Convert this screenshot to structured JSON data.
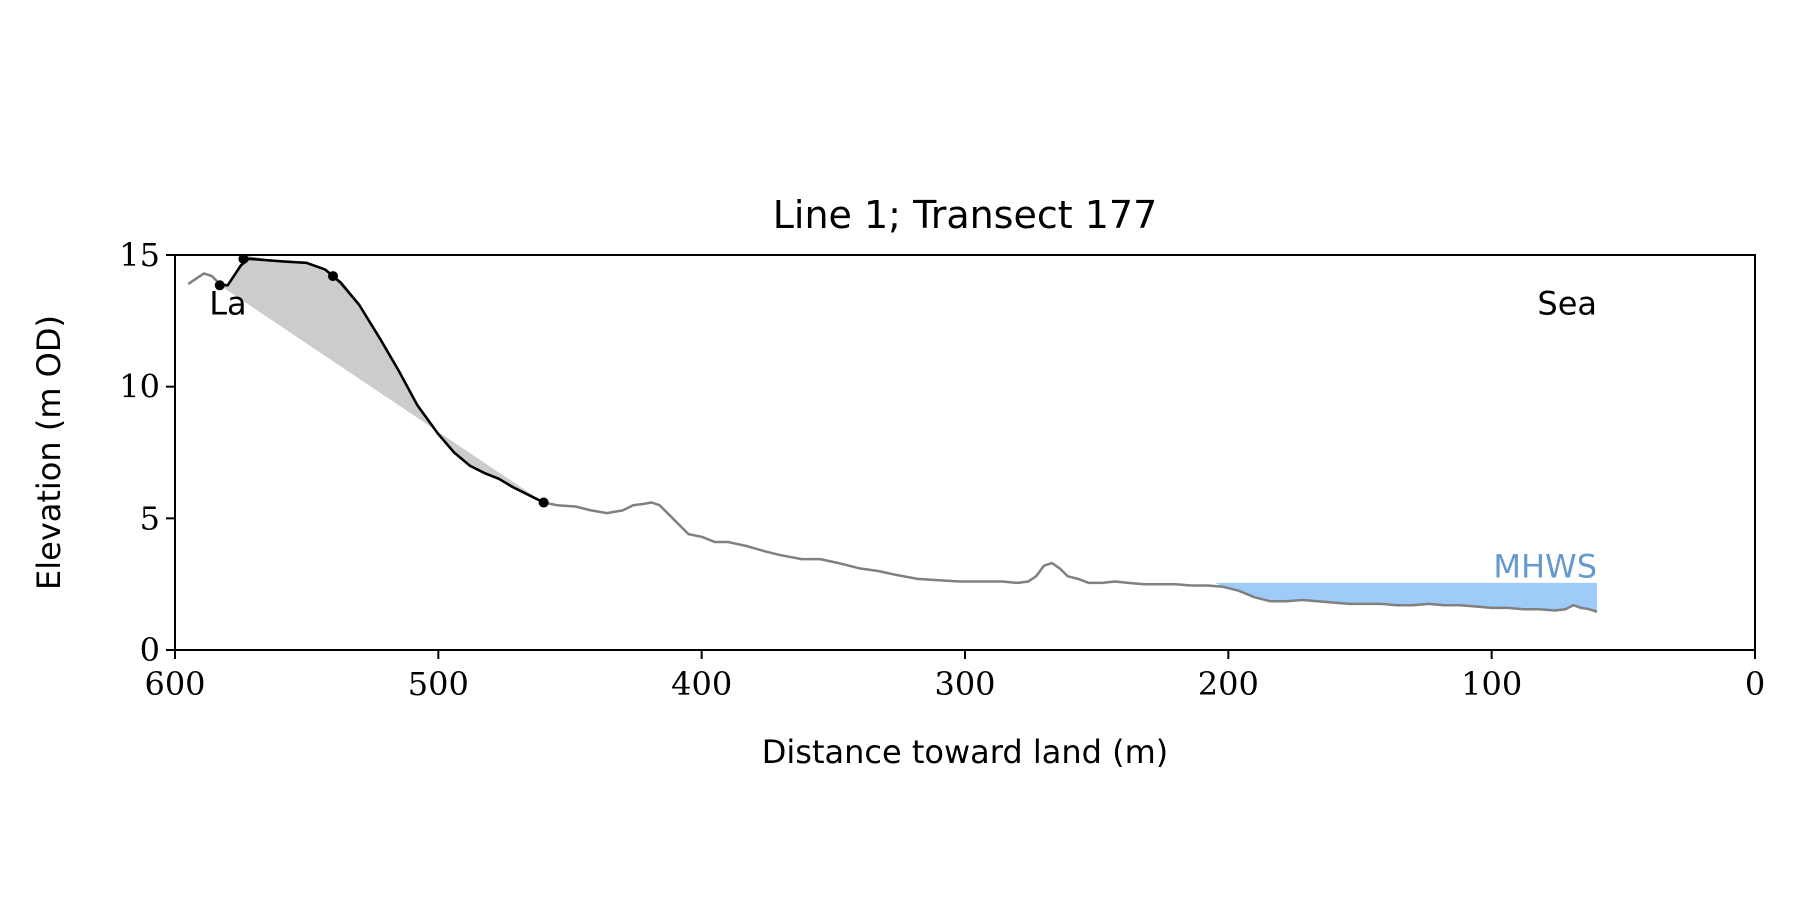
{
  "chart_data": {
    "type": "line",
    "title": "Line 1; Transect 177",
    "xlabel": "Distance toward land (m)",
    "ylabel": "Elevation (m OD)",
    "xlim": [
      600,
      0
    ],
    "ylim": [
      0,
      15
    ],
    "x_ticks": [
      600,
      500,
      400,
      300,
      200,
      100,
      0
    ],
    "y_ticks": [
      0,
      5,
      10,
      15
    ],
    "grid": false,
    "annotations": [
      {
        "text": "La",
        "x": 587,
        "y": 13.2,
        "align": "start"
      },
      {
        "text": "Sea",
        "x": 60,
        "y": 13.2,
        "align": "end"
      },
      {
        "text": "MHWS",
        "x": 60,
        "y": 3.2,
        "align": "end"
      }
    ],
    "colors": {
      "profile": "#808080",
      "cliff": "#000000",
      "fill": "#cccccc",
      "mhws_fill": "#9ecbf7",
      "mhws_text": "#6699cc"
    },
    "mhws": {
      "level": 2.55,
      "x_from": 205,
      "x_to": 60
    },
    "series": [
      {
        "role": "profile",
        "points": [
          [
            595,
            13.9
          ],
          [
            592,
            14.1
          ],
          [
            589,
            14.3
          ],
          [
            586,
            14.2
          ],
          [
            583,
            13.9
          ],
          [
            580,
            13.85
          ],
          [
            575,
            14.6
          ],
          [
            572,
            14.9
          ],
          [
            565,
            14.8
          ],
          [
            558,
            14.75
          ],
          [
            550,
            14.7
          ],
          [
            543,
            14.45
          ],
          [
            540,
            14.2
          ],
          [
            537,
            13.9
          ],
          [
            530,
            13.1
          ],
          [
            522,
            11.8
          ],
          [
            515,
            10.6
          ],
          [
            508,
            9.3
          ],
          [
            500,
            8.2
          ],
          [
            494,
            7.5
          ],
          [
            488,
            7.0
          ],
          [
            482,
            6.7
          ],
          [
            477,
            6.5
          ],
          [
            472,
            6.2
          ],
          [
            466,
            5.9
          ],
          [
            460,
            5.6
          ],
          [
            455,
            5.5
          ],
          [
            448,
            5.45
          ],
          [
            442,
            5.3
          ],
          [
            436,
            5.2
          ],
          [
            430,
            5.3
          ],
          [
            426,
            5.5
          ],
          [
            422,
            5.55
          ],
          [
            419,
            5.6
          ],
          [
            416,
            5.5
          ],
          [
            412,
            5.1
          ],
          [
            408,
            4.7
          ],
          [
            405,
            4.4
          ],
          [
            400,
            4.3
          ],
          [
            395,
            4.1
          ],
          [
            390,
            4.1
          ],
          [
            383,
            3.95
          ],
          [
            376,
            3.75
          ],
          [
            370,
            3.6
          ],
          [
            362,
            3.45
          ],
          [
            355,
            3.45
          ],
          [
            348,
            3.3
          ],
          [
            340,
            3.1
          ],
          [
            333,
            3.0
          ],
          [
            326,
            2.85
          ],
          [
            318,
            2.7
          ],
          [
            310,
            2.65
          ],
          [
            302,
            2.6
          ],
          [
            294,
            2.6
          ],
          [
            286,
            2.6
          ],
          [
            280,
            2.55
          ],
          [
            276,
            2.6
          ],
          [
            273,
            2.8
          ],
          [
            270,
            3.2
          ],
          [
            267,
            3.3
          ],
          [
            264,
            3.1
          ],
          [
            261,
            2.8
          ],
          [
            257,
            2.7
          ],
          [
            253,
            2.55
          ],
          [
            248,
            2.55
          ],
          [
            243,
            2.6
          ],
          [
            238,
            2.55
          ],
          [
            232,
            2.5
          ],
          [
            226,
            2.5
          ],
          [
            220,
            2.5
          ],
          [
            214,
            2.45
          ],
          [
            208,
            2.45
          ],
          [
            202,
            2.4
          ],
          [
            196,
            2.25
          ],
          [
            190,
            2.0
          ],
          [
            184,
            1.85
          ],
          [
            178,
            1.85
          ],
          [
            172,
            1.9
          ],
          [
            166,
            1.85
          ],
          [
            160,
            1.8
          ],
          [
            154,
            1.75
          ],
          [
            148,
            1.75
          ],
          [
            142,
            1.75
          ],
          [
            136,
            1.7
          ],
          [
            130,
            1.7
          ],
          [
            124,
            1.75
          ],
          [
            118,
            1.7
          ],
          [
            112,
            1.7
          ],
          [
            106,
            1.65
          ],
          [
            100,
            1.6
          ],
          [
            94,
            1.6
          ],
          [
            88,
            1.55
          ],
          [
            82,
            1.55
          ],
          [
            76,
            1.5
          ],
          [
            72,
            1.55
          ],
          [
            69,
            1.7
          ],
          [
            66,
            1.6
          ],
          [
            63,
            1.55
          ],
          [
            60,
            1.45
          ]
        ]
      },
      {
        "role": "cliff-profile",
        "points": [
          [
            583,
            13.85
          ],
          [
            580,
            13.85
          ],
          [
            575,
            14.6
          ],
          [
            572,
            14.85
          ],
          [
            565,
            14.8
          ],
          [
            558,
            14.75
          ],
          [
            550,
            14.7
          ],
          [
            543,
            14.45
          ],
          [
            540,
            14.2
          ],
          [
            537,
            13.95
          ],
          [
            530,
            13.1
          ],
          [
            522,
            11.8
          ],
          [
            515,
            10.6
          ],
          [
            508,
            9.3
          ],
          [
            500,
            8.2
          ],
          [
            494,
            7.5
          ],
          [
            488,
            7.0
          ],
          [
            482,
            6.7
          ],
          [
            477,
            6.5
          ],
          [
            472,
            6.2
          ],
          [
            466,
            5.9
          ],
          [
            460,
            5.6
          ]
        ]
      }
    ],
    "markers": [
      [
        583,
        13.85
      ],
      [
        574,
        14.85
      ],
      [
        540,
        14.2
      ],
      [
        460,
        5.6
      ]
    ],
    "shaded_region_chord": [
      [
        583,
        13.85
      ],
      [
        460,
        5.6
      ]
    ]
  }
}
